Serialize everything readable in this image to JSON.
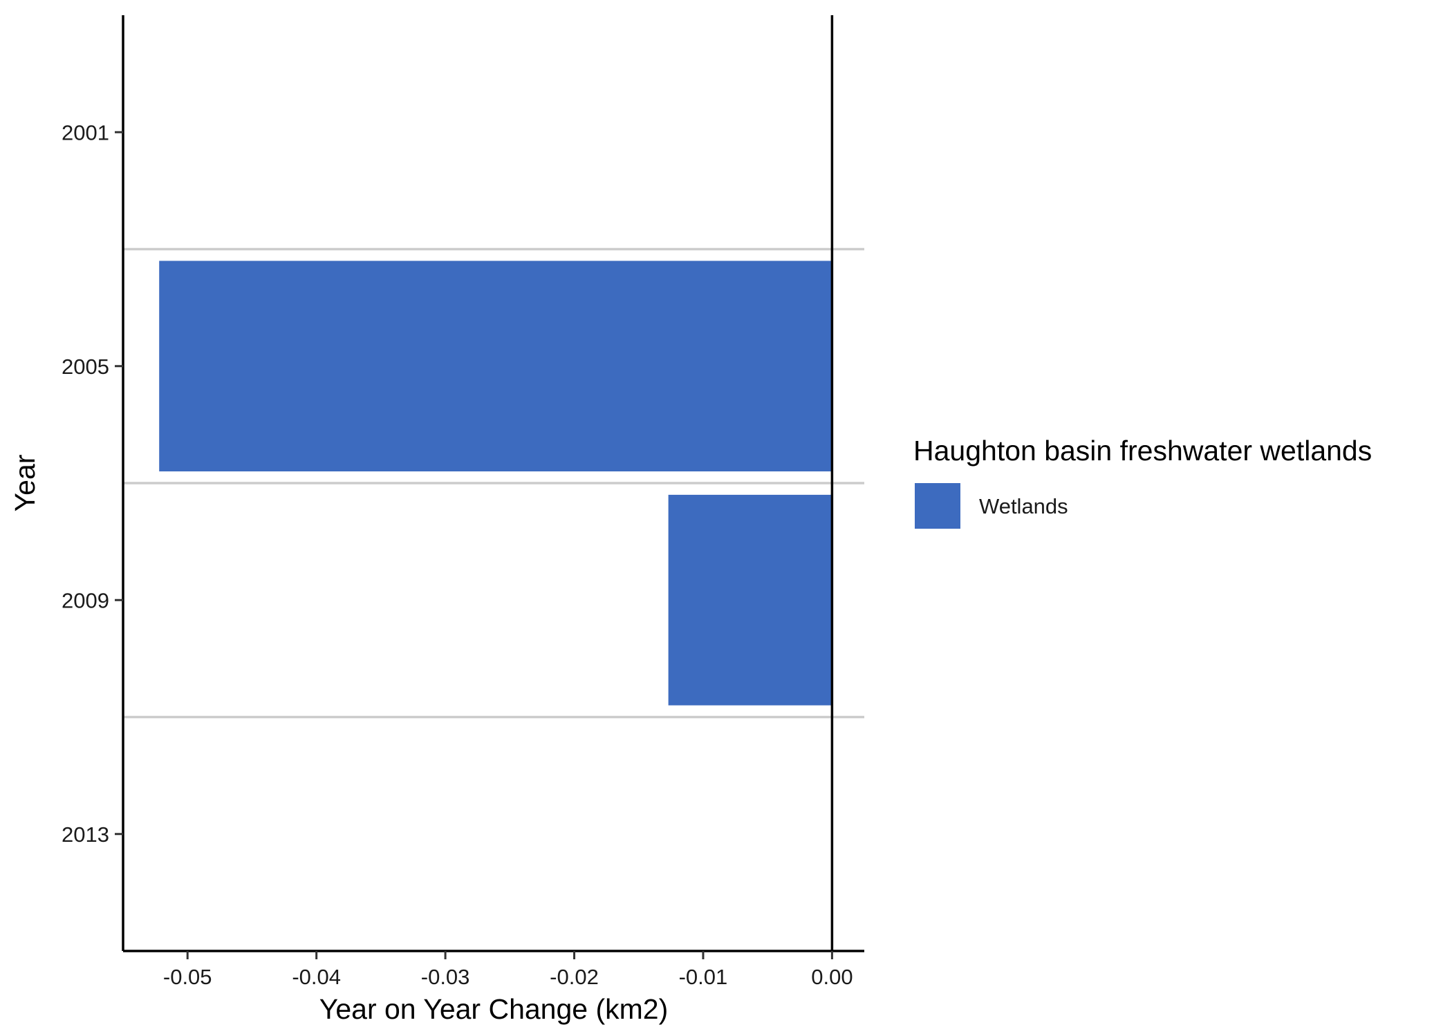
{
  "chart_data": {
    "type": "bar",
    "orientation": "horizontal",
    "categories": [
      "2001",
      "2005",
      "2009",
      "2013"
    ],
    "series": [
      {
        "name": "Wetlands",
        "color": "#3d6bbf",
        "values": [
          0,
          -0.0522,
          -0.0127,
          0
        ]
      }
    ],
    "xlabel": "Year on Year Change (km2)",
    "ylabel": "Year",
    "xlim": [
      -0.055,
      0.0025
    ],
    "xticks": [
      -0.05,
      -0.04,
      -0.03,
      -0.02,
      -0.01,
      0.0
    ],
    "xtick_labels": [
      "-0.05",
      "-0.04",
      "-0.03",
      "-0.02",
      "-0.01",
      "0.00"
    ],
    "legend": {
      "title": "Haughton basin freshwater wetlands",
      "position": "right"
    },
    "grid": "horizontal separators between categories",
    "colors": {
      "bar": "#3d6bbf",
      "separator": "#cccccc",
      "axis": "#000000"
    }
  }
}
